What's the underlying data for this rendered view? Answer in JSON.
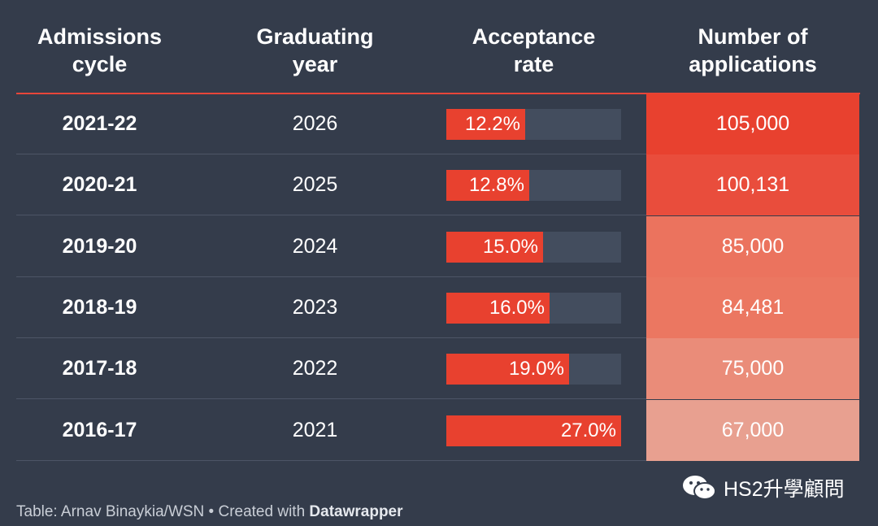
{
  "header": {
    "col1": "Admissions\ncycle",
    "col2": "Graduating\nyear",
    "col3": "Acceptance\nrate",
    "col4": "Number of\napplications"
  },
  "rows": [
    {
      "cycle": "2021-22",
      "year": "2026",
      "rate": 12.2,
      "rate_label": "12.2%",
      "applications": 105000,
      "applications_label": "105,000",
      "cell_color": "#e8412f"
    },
    {
      "cycle": "2020-21",
      "year": "2025",
      "rate": 12.8,
      "rate_label": "12.8%",
      "applications": 100131,
      "applications_label": "100,131",
      "cell_color": "#e94d3c"
    },
    {
      "cycle": "2019-20",
      "year": "2024",
      "rate": 15.0,
      "rate_label": "15.0%",
      "applications": 85000,
      "applications_label": "85,000",
      "cell_color": "#eb735e"
    },
    {
      "cycle": "2018-19",
      "year": "2023",
      "rate": 16.0,
      "rate_label": "16.0%",
      "applications": 84481,
      "applications_label": "84,481",
      "cell_color": "#eb7761"
    },
    {
      "cycle": "2017-18",
      "year": "2022",
      "rate": 19.0,
      "rate_label": "19.0%",
      "applications": 75000,
      "applications_label": "75,000",
      "cell_color": "#ea8c79"
    },
    {
      "cycle": "2016-17",
      "year": "2021",
      "rate": 27.0,
      "rate_label": "27.0%",
      "applications": 67000,
      "applications_label": "67,000",
      "cell_color": "#e8a090"
    }
  ],
  "footer": {
    "source": "Table: Arnav Binaykia/WSN • Created with ",
    "tool": "Datawrapper"
  },
  "watermark": {
    "text": "HS2升學顧問",
    "icon": "wechat-icon"
  },
  "colors": {
    "background": "#343c4b",
    "accent": "#e8412f",
    "bar_track": "#434d5e"
  },
  "chart_data": {
    "type": "table",
    "title": "",
    "columns": [
      "Admissions cycle",
      "Graduating year",
      "Acceptance rate",
      "Number of applications"
    ],
    "categories": [
      "2021-22",
      "2020-21",
      "2019-20",
      "2018-19",
      "2017-18",
      "2016-17"
    ],
    "series": [
      {
        "name": "Graduating year",
        "values": [
          2026,
          2025,
          2024,
          2023,
          2022,
          2021
        ]
      },
      {
        "name": "Acceptance rate (%)",
        "values": [
          12.2,
          12.8,
          15.0,
          16.0,
          19.0,
          27.0
        ]
      },
      {
        "name": "Number of applications",
        "values": [
          105000,
          100131,
          85000,
          84481,
          75000,
          67000
        ]
      }
    ],
    "rate_bar_max": 27.0
  }
}
